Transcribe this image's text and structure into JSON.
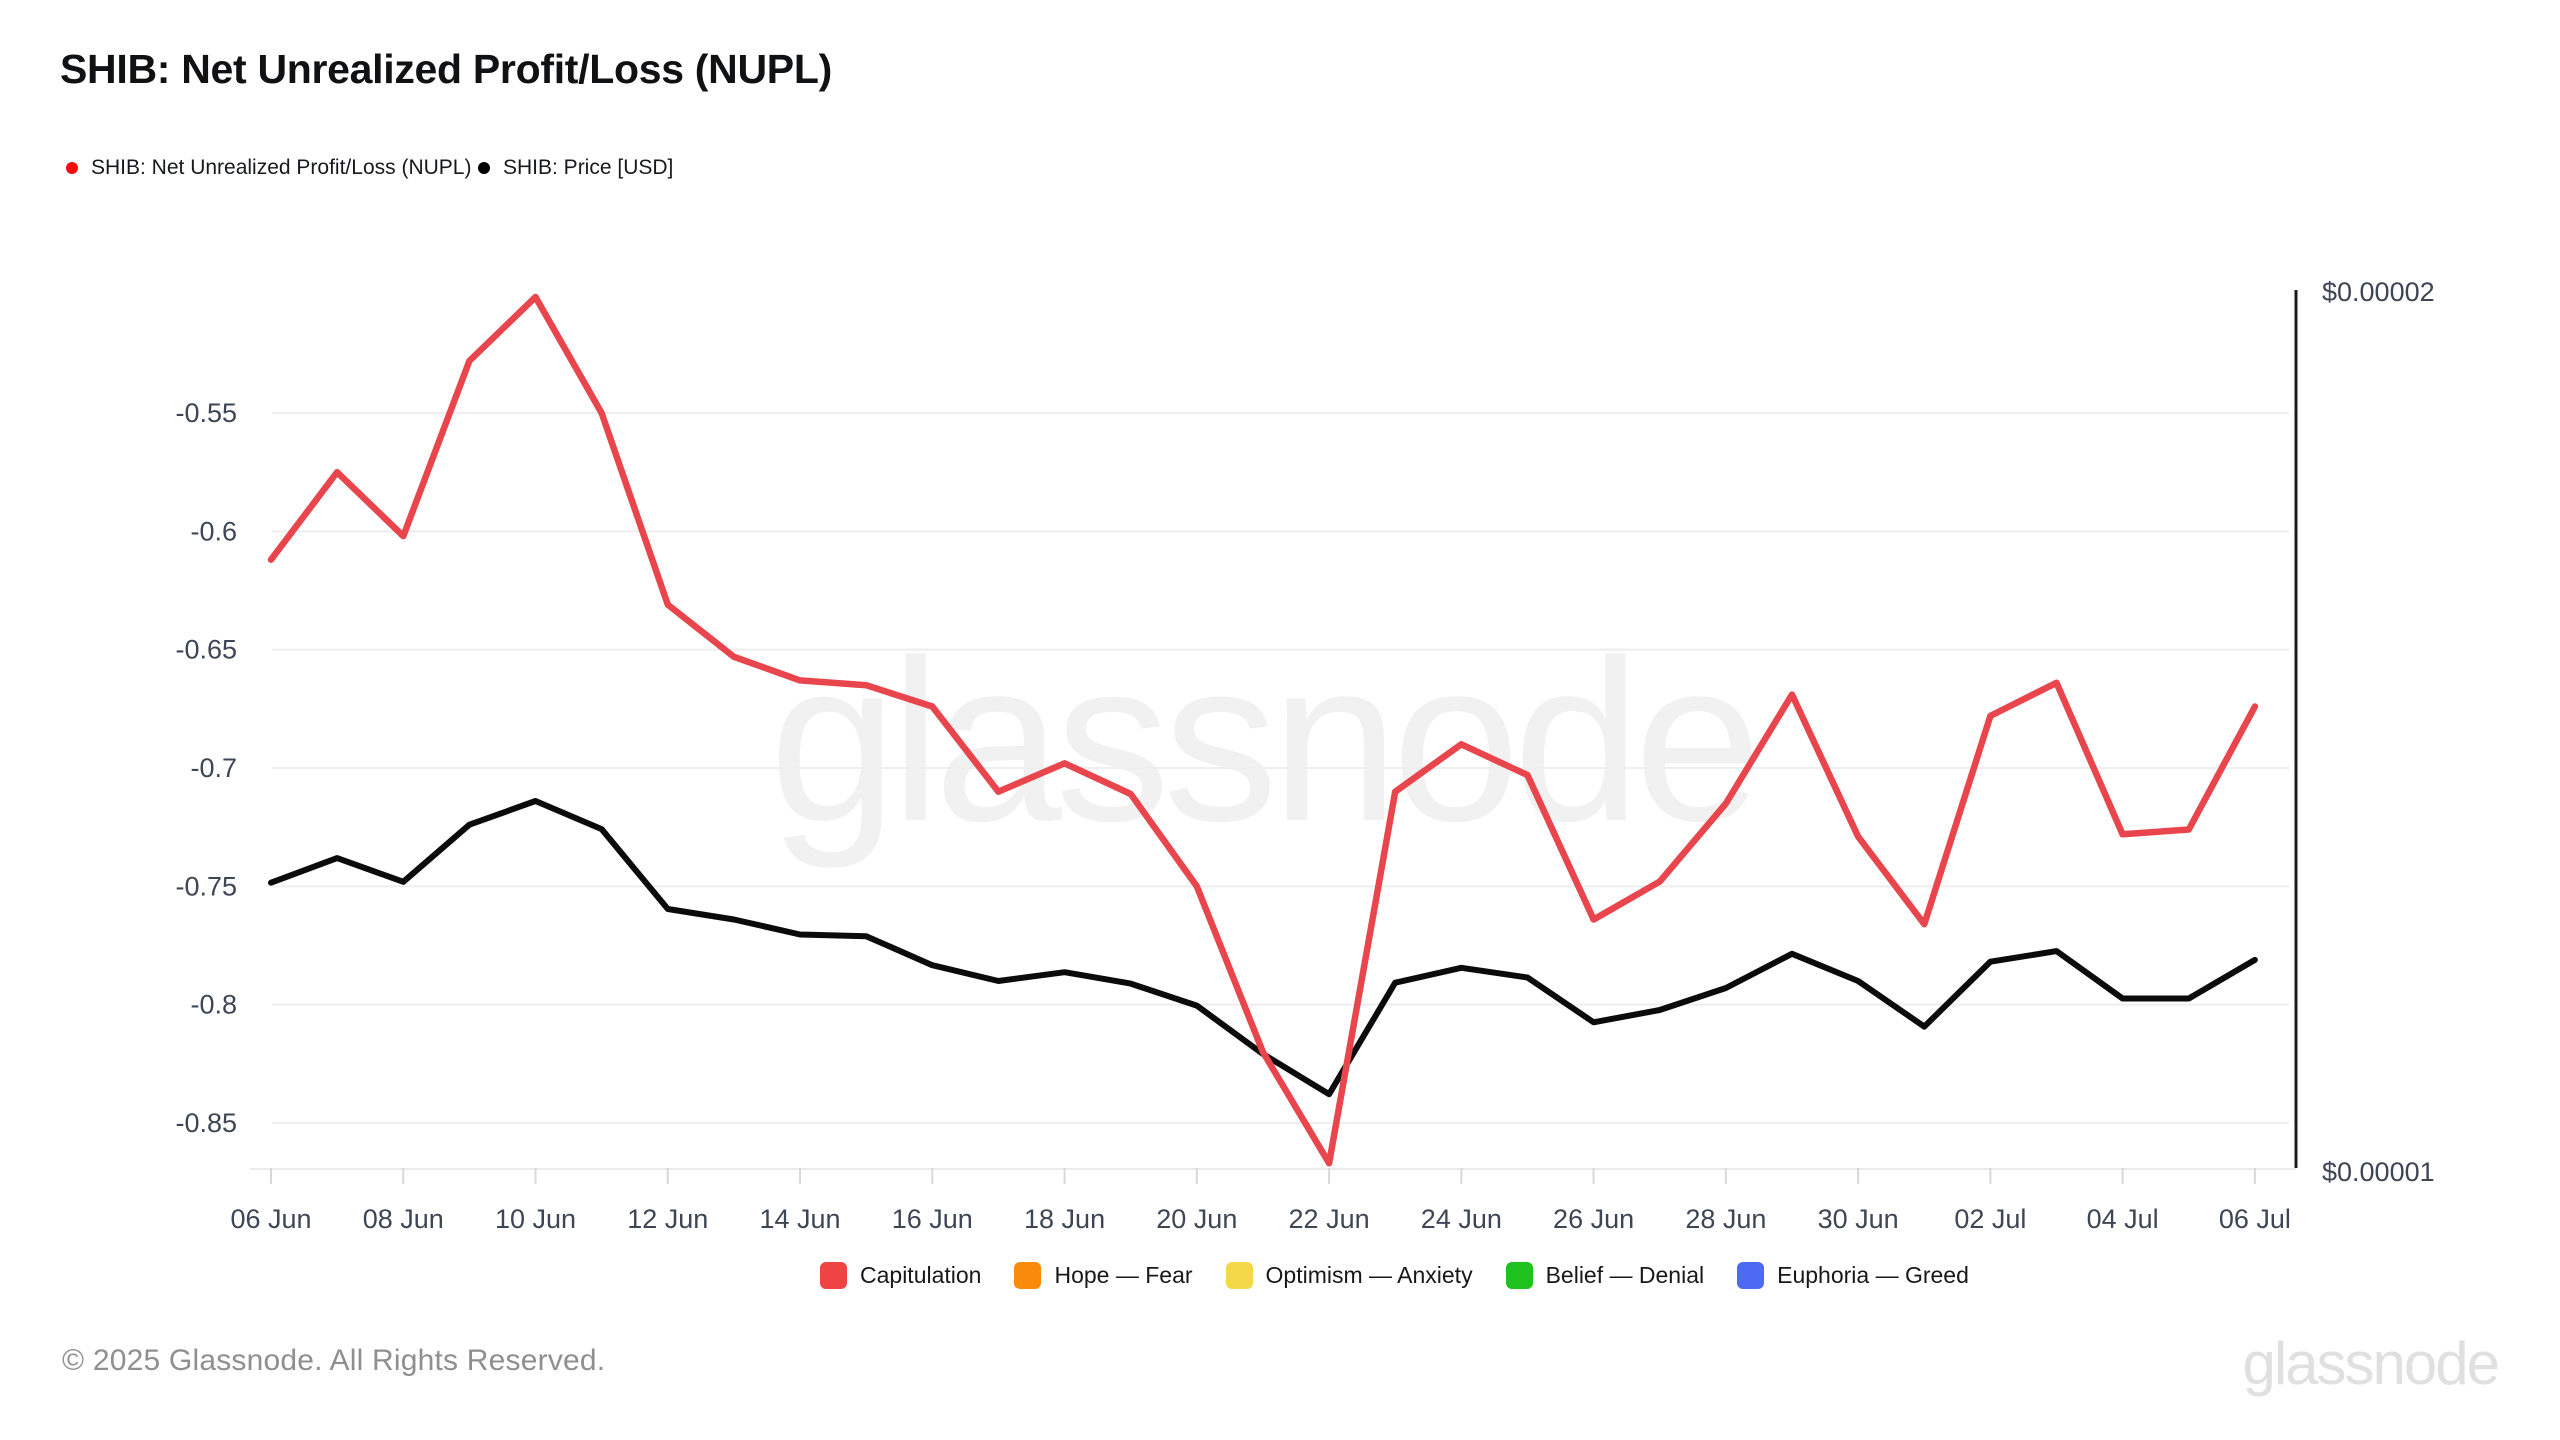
{
  "header": {
    "title": "SHIB: Net Unrealized Profit/Loss (NUPL)"
  },
  "legend_top": {
    "items": [
      {
        "label": "SHIB: Net Unrealized Profit/Loss (NUPL)",
        "color": "#fa0a0a"
      },
      {
        "label": "SHIB: Price [USD]",
        "color": "#000000"
      }
    ]
  },
  "legend_bottom": {
    "items": [
      {
        "label": "Capitulation",
        "color": "#ef4444"
      },
      {
        "label": "Hope — Fear",
        "color": "#f98a0a"
      },
      {
        "label": "Optimism — Anxiety",
        "color": "#f5d84a"
      },
      {
        "label": "Belief — Denial",
        "color": "#20c220"
      },
      {
        "label": "Euphoria — Greed",
        "color": "#4d6af2"
      }
    ]
  },
  "watermark": {
    "center": "glassnode",
    "corner": "glassnode"
  },
  "footer": {
    "copyright": "© 2025 Glassnode. All Rights Reserved."
  },
  "chart_data": {
    "type": "line",
    "title": "SHIB: Net Unrealized Profit/Loss (NUPL)",
    "grid": "horizontal",
    "legend_position": "top-left",
    "x": [
      "06 Jun",
      "07 Jun",
      "08 Jun",
      "09 Jun",
      "10 Jun",
      "11 Jun",
      "12 Jun",
      "13 Jun",
      "14 Jun",
      "15 Jun",
      "16 Jun",
      "17 Jun",
      "18 Jun",
      "19 Jun",
      "20 Jun",
      "21 Jun",
      "22 Jun",
      "23 Jun",
      "24 Jun",
      "25 Jun",
      "26 Jun",
      "27 Jun",
      "28 Jun",
      "29 Jun",
      "30 Jun",
      "01 Jul",
      "02 Jul",
      "03 Jul",
      "04 Jul",
      "05 Jul",
      "06 Jul"
    ],
    "x_tick_labels": [
      "06 Jun",
      "08 Jun",
      "10 Jun",
      "12 Jun",
      "14 Jun",
      "16 Jun",
      "18 Jun",
      "20 Jun",
      "22 Jun",
      "24 Jun",
      "26 Jun",
      "28 Jun",
      "30 Jun",
      "02 Jul",
      "04 Jul",
      "06 Jul"
    ],
    "series": [
      {
        "name": "SHIB: Net Unrealized Profit/Loss (NUPL)",
        "axis": "left",
        "color": "#e8454d",
        "values": [
          -0.612,
          -0.575,
          -0.602,
          -0.528,
          -0.501,
          -0.55,
          -0.631,
          -0.653,
          -0.663,
          -0.665,
          -0.674,
          -0.71,
          -0.698,
          -0.711,
          -0.75,
          -0.82,
          -0.867,
          -0.71,
          -0.69,
          -0.703,
          -0.764,
          -0.748,
          -0.715,
          -0.669,
          -0.729,
          -0.766,
          -0.678,
          -0.664,
          -0.728,
          -0.726,
          -0.674
        ]
      },
      {
        "name": "SHIB: Price [USD]",
        "axis": "right",
        "color": "#0b0b0b",
        "values": [
          1.325e-05,
          1.353e-05,
          1.326e-05,
          1.391e-05,
          1.418e-05,
          1.386e-05,
          1.295e-05,
          1.283e-05,
          1.266e-05,
          1.264e-05,
          1.231e-05,
          1.213e-05,
          1.223e-05,
          1.21e-05,
          1.185e-05,
          1.13e-05,
          1.084e-05,
          1.211e-05,
          1.228e-05,
          1.217e-05,
          1.166e-05,
          1.18e-05,
          1.205e-05,
          1.244e-05,
          1.213e-05,
          1.161e-05,
          1.235e-05,
          1.247e-05,
          1.193e-05,
          1.193e-05,
          1.237e-05
        ]
      }
    ],
    "y_left": {
      "ticks": [
        -0.55,
        -0.6,
        -0.65,
        -0.7,
        -0.75,
        -0.8,
        -0.85
      ],
      "tick_labels": [
        "-0.55",
        "-0.6",
        "-0.65",
        "-0.7",
        "-0.75",
        "-0.8",
        "-0.85"
      ]
    },
    "y_right": {
      "min": 1e-05,
      "max": 2e-05,
      "tick_labels": [
        "$0.00002",
        "$0.00001"
      ]
    }
  }
}
